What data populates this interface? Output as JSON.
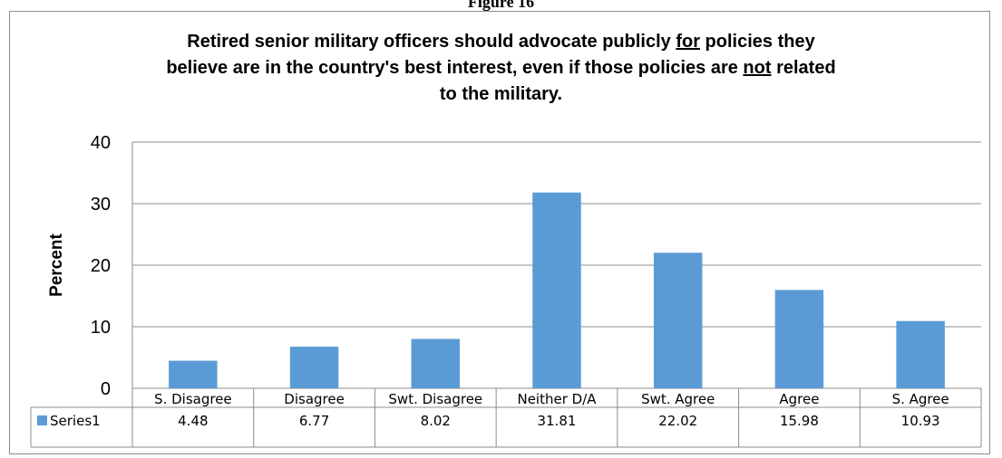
{
  "figure_caption": "Figure 16",
  "chart_data": {
    "type": "bar",
    "title_parts": [
      {
        "text": "Retired senior military officers should advocate publicly ",
        "underline": false
      },
      {
        "text": "for",
        "underline": true
      },
      {
        "text": " policies they believe are in the country's best interest, even if those policies are ",
        "underline": false
      },
      {
        "text": "not",
        "underline": true
      },
      {
        "text": " related to the military.",
        "underline": false
      }
    ],
    "ylabel": "Percent",
    "xlabel": "",
    "ylim": [
      0,
      40
    ],
    "yticks": [
      0,
      10,
      20,
      30,
      40
    ],
    "grid": true,
    "categories": [
      "S. Disagree",
      "Disagree",
      "Swt. Disagree",
      "Neither D/A",
      "Swt. Agree",
      "Agree",
      "S. Agree"
    ],
    "series": [
      {
        "name": "Series1",
        "values": [
          4.48,
          6.77,
          8.02,
          31.81,
          22.02,
          15.98,
          10.93
        ],
        "color": "#5b9bd5"
      }
    ],
    "data_table": true
  }
}
